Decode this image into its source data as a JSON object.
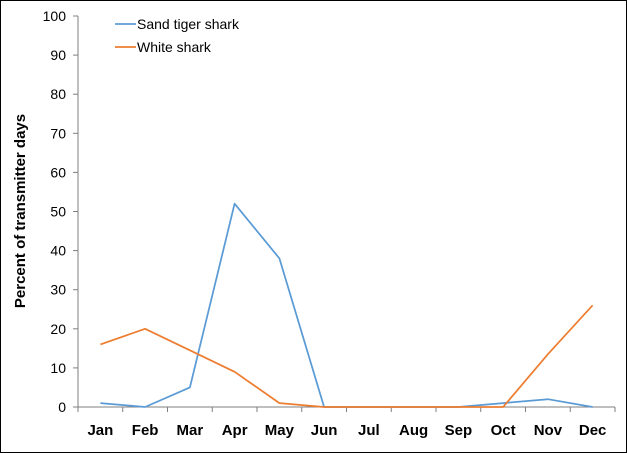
{
  "chart_data": {
    "type": "line",
    "title": "",
    "xlabel": "",
    "ylabel": "Percent of transmitter days",
    "categories": [
      "Jan",
      "Feb",
      "Mar",
      "Apr",
      "May",
      "Jun",
      "Jul",
      "Aug",
      "Sep",
      "Oct",
      "Nov",
      "Dec"
    ],
    "ylim": [
      0,
      100
    ],
    "yticks": [
      "0",
      "10",
      "20",
      "30",
      "40",
      "50",
      "60",
      "70",
      "80",
      "90",
      "100"
    ],
    "grid": false,
    "legend_position": "top-left",
    "series": [
      {
        "name": "Sand tiger shark",
        "color": "#5b9bd5",
        "values": [
          1,
          0,
          5,
          52,
          38,
          0,
          0,
          0,
          0,
          1,
          2,
          0
        ]
      },
      {
        "name": "White shark",
        "color": "#ed7d31",
        "values": [
          16,
          20,
          14.5,
          9,
          1,
          0,
          0,
          0,
          0,
          0,
          13.5,
          26
        ]
      }
    ]
  }
}
